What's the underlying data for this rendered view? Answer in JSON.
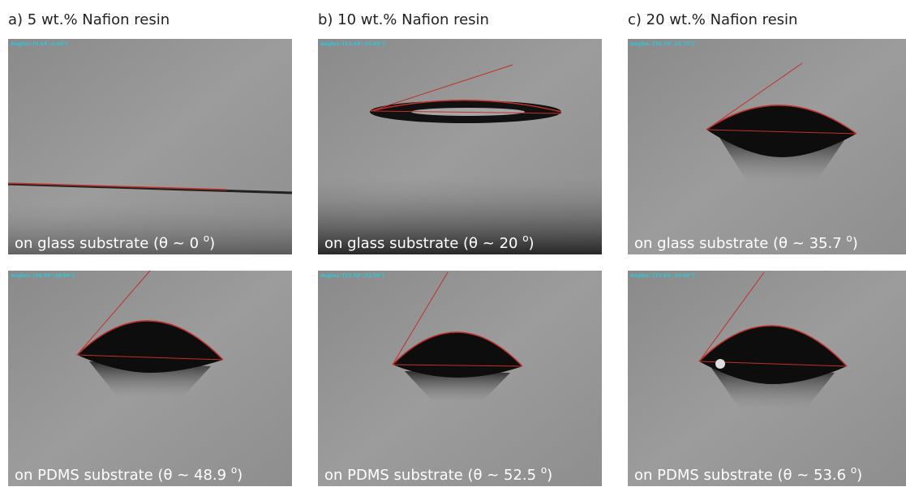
{
  "columns": [
    {
      "title": "a) 5 wt.% Nafion resin",
      "panels": [
        {
          "angles": "Angles: [0.64°,0.60°]",
          "caption": "on glass substrate (θ ~ 0 ",
          "sup": "o",
          "close": ")"
        },
        {
          "angles": "Angles: [48.98°,48.98°]",
          "caption": "on PDMS substrate (θ ~ 48.9 ",
          "sup": "o",
          "close": ")"
        }
      ]
    },
    {
      "title": "b) 10 wt.% Nafion resin",
      "panels": [
        {
          "angles": "Angles: [19.46°,21.00°]",
          "caption": "on glass substrate (θ ~ 20 ",
          "sup": "o",
          "close": ")"
        },
        {
          "angles": "Angles: [52.58°,52.58°]",
          "caption": "on PDMS substrate (θ ~ 52.5 ",
          "sup": "o",
          "close": ")"
        }
      ]
    },
    {
      "title": "c) 20 wt.% Nafion resin",
      "panels": [
        {
          "angles": "Angles: [35.70°,35.70°]",
          "caption": "on glass substrate (θ ~ 35.7 ",
          "sup": "o",
          "close": ")"
        },
        {
          "angles": "Angles: [53.64°,53.60°]",
          "caption": "on PDMS substrate (θ ~ 53.6 ",
          "sup": "o",
          "close": ")"
        }
      ]
    }
  ]
}
